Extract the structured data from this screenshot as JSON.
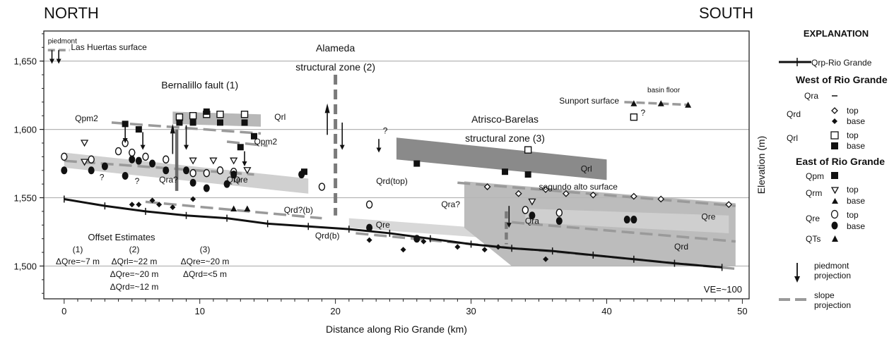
{
  "chart_data": {
    "type": "scatter",
    "title_left": "NORTH",
    "title_right": "SOUTH",
    "xlabel": "Distance along Rio Grande (km)",
    "ylabel": "Elevation (m)",
    "xlim": [
      -1.5,
      50.5
    ],
    "ylim": [
      1476,
      1672
    ],
    "x_ticks": [
      0,
      10,
      20,
      30,
      40,
      50
    ],
    "y_ticks": [
      1500,
      1550,
      1600,
      1650
    ],
    "y_tick_labels": [
      "1,500",
      "1,550",
      "1,600",
      "1,650"
    ],
    "grid": "horizontal",
    "ve_label": "VE=~100",
    "zone_labels": [
      {
        "text": "Bernalillo fault (1)",
        "x": 10,
        "y": 1630
      },
      {
        "text": "Alameda",
        "x": 20,
        "y": 1657
      },
      {
        "text": "structural zone (2)",
        "x": 20,
        "y": 1643
      },
      {
        "text": "Atrisco-Barelas",
        "x": 32.5,
        "y": 1605
      },
      {
        "text": "structural zone (3)",
        "x": 32.5,
        "y": 1591
      }
    ],
    "bands": [
      {
        "label": "Qrl",
        "color": "#8a8a8a",
        "points": [
          [
            24.5,
            1594
          ],
          [
            40,
            1578
          ],
          [
            40,
            1563
          ],
          [
            24.5,
            1578
          ]
        ],
        "label_x": 38.5,
        "label_y": 1569
      },
      {
        "label": "Qre",
        "color": "#d0d0d0",
        "points": [
          [
            0,
            1583
          ],
          [
            18,
            1564
          ],
          [
            18,
            1553
          ],
          [
            0,
            1572
          ]
        ],
        "label_x": 12.5,
        "label_y": 1561
      },
      {
        "label": "",
        "color": "#b8b8b8",
        "points": [
          [
            8,
            1613
          ],
          [
            14.5,
            1611
          ],
          [
            14.5,
            1602
          ],
          [
            8,
            1604
          ]
        ],
        "label_x": null,
        "label_y": null
      },
      {
        "label": "Qre",
        "color": "#d8d8d8",
        "points": [
          [
            21,
            1535
          ],
          [
            32,
            1527
          ],
          [
            32,
            1520
          ],
          [
            21,
            1528
          ]
        ],
        "label_x": 23.5,
        "label_y": 1528
      },
      {
        "label": "Qra",
        "color": "#bcbcbc",
        "points": [
          [
            29.5,
            1562
          ],
          [
            49.5,
            1546
          ],
          [
            49.5,
            1500
          ],
          [
            33,
            1500
          ],
          [
            29.5,
            1528
          ]
        ],
        "label_x": 34.5,
        "label_y": 1531
      },
      {
        "label": "Qre",
        "color": "#cfcfcf",
        "points": [
          [
            34,
            1542
          ],
          [
            49,
            1537
          ],
          [
            49,
            1524
          ],
          [
            34,
            1532
          ]
        ],
        "label_x": 47.5,
        "label_y": 1534
      },
      {
        "label": "Qrd",
        "color": "#bcbcbc",
        "points": [],
        "label_x": 45.5,
        "label_y": 1512
      }
    ],
    "band_labels_other": [
      {
        "text": "Qrl",
        "x": 15.5,
        "y": 1607
      }
    ],
    "series": [
      {
        "name": "Qrp-Rio Grande",
        "x": [
          0,
          3,
          6,
          9,
          12,
          15,
          18,
          21,
          24,
          27,
          30,
          33,
          36,
          39,
          42,
          45,
          48.5
        ],
        "y": [
          1549,
          1544,
          1540,
          1537,
          1535,
          1531,
          1529,
          1527,
          1524,
          1520,
          1516,
          1513,
          1511,
          1508,
          1505,
          1502,
          1499
        ]
      },
      {
        "name": "Qrl top",
        "marker": "open-square",
        "x": [
          8.5,
          9.5,
          10.5,
          11.5,
          13.3,
          34.2,
          42
        ],
        "y": [
          1609,
          1610,
          1611,
          1611,
          1611,
          1585,
          1609
        ]
      },
      {
        "name": "Qrl base",
        "marker": "filled-square",
        "x": [
          4.5,
          5.5,
          8.5,
          9.5,
          10.5,
          11.5,
          13.3,
          14,
          13,
          26,
          32.5,
          34.2,
          17.7
        ],
        "y": [
          1604,
          1600,
          1605,
          1605,
          1613,
          1605,
          1605,
          1595,
          1587,
          1575,
          1569,
          1567,
          1569
        ]
      },
      {
        "name": "Qrd top",
        "marker": "open-diamond",
        "x": [
          5,
          31.2,
          33.5,
          35.5,
          37,
          39,
          42,
          44,
          49
        ],
        "y": [
          1583,
          1558,
          1553,
          1556,
          1553,
          1552,
          1551,
          1549,
          1545
        ]
      },
      {
        "name": "Qrd base",
        "marker": "filled-diamond",
        "x": [
          5,
          5.5,
          6.5,
          7,
          8,
          9.5,
          26.5,
          22.5,
          25,
          31,
          35.5,
          29,
          32
        ],
        "y": [
          1545,
          1545,
          1548,
          1545,
          1543,
          1549,
          1518,
          1519,
          1512,
          1512,
          1505,
          1514,
          1514
        ]
      },
      {
        "name": "Qrm top",
        "marker": "open-tri-down",
        "x": [
          1.5,
          9.5,
          11,
          12.5,
          13.5,
          34.5,
          1.5
        ],
        "y": [
          1590,
          1577,
          1577,
          1577,
          1570,
          1547,
          1576
        ]
      },
      {
        "name": "Qrm base",
        "marker": "filled-tri",
        "x": [
          12.5,
          13.5,
          42,
          44,
          46
        ],
        "y": [
          1542,
          1542,
          1619,
          1619,
          1618
        ]
      },
      {
        "name": "Qre top",
        "marker": "open-circle",
        "x": [
          0,
          2,
          4,
          4.5,
          5,
          6,
          7.5,
          10.5,
          11.5,
          12.5,
          19,
          22.5,
          34,
          36.5,
          9.5
        ],
        "y": [
          1580,
          1578,
          1584,
          1590,
          1583,
          1580,
          1578,
          1568,
          1570,
          1569,
          1558,
          1545,
          1541,
          1539,
          1568
        ]
      },
      {
        "name": "Qre base",
        "marker": "filled-circle",
        "x": [
          0,
          2,
          3,
          5,
          5.5,
          6.5,
          7.5,
          9,
          9.5,
          10.5,
          12,
          12.5,
          17.5,
          22.5,
          26,
          34.5,
          36.5,
          41.5,
          42,
          4.5
        ],
        "y": [
          1570,
          1570,
          1573,
          1578,
          1577,
          1575,
          1570,
          1570,
          1561,
          1557,
          1560,
          1567,
          1567,
          1528,
          1520,
          1537,
          1533,
          1534,
          1534,
          1566
        ]
      }
    ],
    "dashed_lines": [
      {
        "label": "Qpm2",
        "x": [
          3.5,
          14.5
        ],
        "y": [
          1605,
          1597
        ]
      },
      {
        "label": "Qpm2",
        "x": [
          12,
          15
        ],
        "y": [
          1591,
          1588
        ]
      },
      {
        "label": "Qrd(top)",
        "x": [
          29,
          49.5
        ],
        "y": [
          1561,
          1544
        ]
      },
      {
        "label": "Qrd?(b)",
        "x": [
          6,
          19
        ],
        "y": [
          1547,
          1535
        ]
      },
      {
        "label": "Qrd(b)",
        "x": [
          21.5,
          49.5
        ],
        "y": [
          1524,
          1498
        ]
      },
      {
        "label": "",
        "x": [
          33,
          49.5
        ],
        "y": [
          1532,
          1518
        ]
      },
      {
        "label": "",
        "x": [
          0,
          14
        ],
        "y": [
          1577,
          1567
        ]
      }
    ],
    "text_labels": [
      {
        "text": "piedmont",
        "x": -1.2,
        "y": 1663
      },
      {
        "text": "Las Huertas surface",
        "x": 0.5,
        "y": 1658
      },
      {
        "text": "Qpm2",
        "x": 0.8,
        "y": 1606
      },
      {
        "text": "Qpm2",
        "x": 14,
        "y": 1589
      },
      {
        "text": "Qra?",
        "x": 7,
        "y": 1561
      },
      {
        "text": "Qre",
        "x": 12.5,
        "y": 1561
      },
      {
        "text": "Qrd?(b)",
        "x": 16.2,
        "y": 1539
      },
      {
        "text": "Qrd(top)",
        "x": 23,
        "y": 1560
      },
      {
        "text": "segundo alto surface",
        "x": 35,
        "y": 1556
      },
      {
        "text": "Sunport surface",
        "x": 36.5,
        "y": 1619
      },
      {
        "text": "basin floor",
        "x": 43,
        "y": 1627
      },
      {
        "text": "Qra?",
        "x": 27.8,
        "y": 1543
      },
      {
        "text": "Qrd(b)",
        "x": 18.5,
        "y": 1520
      },
      {
        "text": "?",
        "x": 23.5,
        "y": 1597
      },
      {
        "text": "?",
        "x": 42.5,
        "y": 1610
      },
      {
        "text": "?",
        "x": 2.6,
        "y": 1563
      },
      {
        "text": "?",
        "x": 5.2,
        "y": 1560
      }
    ],
    "offset_estimates": {
      "title": "Offset Estimates",
      "columns": [
        {
          "label": "(1)",
          "lines": [
            "ΔQre=~7 m"
          ]
        },
        {
          "label": "(2)",
          "lines": [
            "ΔQrl=~22 m",
            "ΔQre=~20 m",
            "ΔQrd=~12 m"
          ]
        },
        {
          "label": "(3)",
          "lines": [
            "ΔQre=~20 m",
            "ΔQrd=<5 m"
          ]
        }
      ]
    },
    "legend_placement": "right",
    "legend": {
      "title": "EXPLANATION",
      "rio_grande": "Qrp-Rio Grande",
      "west_heading": "West of Rio Grande",
      "east_heading": "East of Rio Grande",
      "items": [
        {
          "unit": "Qra",
          "rows": [
            {
              "symbol": "dash",
              "label": ""
            }
          ]
        },
        {
          "unit": "Qrd",
          "rows": [
            {
              "symbol": "open-diamond",
              "label": "top"
            },
            {
              "symbol": "filled-diamond",
              "label": "base"
            }
          ]
        },
        {
          "unit": "Qrl",
          "rows": [
            {
              "symbol": "open-square",
              "label": "top"
            },
            {
              "symbol": "filled-square",
              "label": "base"
            }
          ]
        },
        {
          "unit": "Qpm",
          "rows": [
            {
              "symbol": "filled-square",
              "label": ""
            }
          ]
        },
        {
          "unit": "Qrm",
          "rows": [
            {
              "symbol": "open-tri-down",
              "label": "top"
            },
            {
              "symbol": "filled-tri",
              "label": "base"
            }
          ]
        },
        {
          "unit": "Qre",
          "rows": [
            {
              "symbol": "open-circle",
              "label": "top"
            },
            {
              "symbol": "filled-circle",
              "label": "base"
            }
          ]
        },
        {
          "unit": "QTs",
          "rows": [
            {
              "symbol": "filled-tri",
              "label": ""
            }
          ]
        }
      ],
      "piedmont_1": "piedmont",
      "piedmont_2": "projection",
      "slope_1": "slope",
      "slope_2": "projection"
    }
  }
}
